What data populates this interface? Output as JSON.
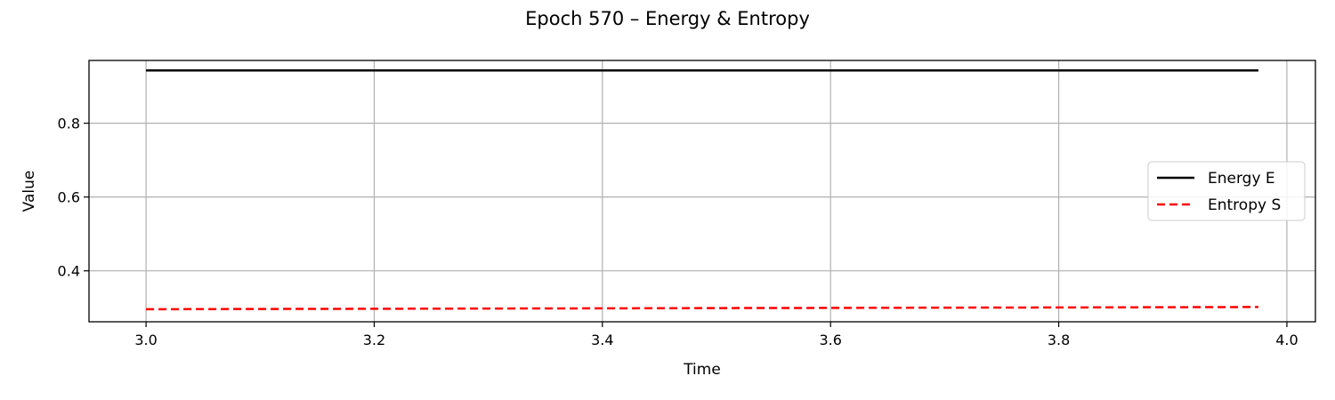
{
  "chart_data": {
    "type": "line",
    "title": "Epoch 570 – Energy & Entropy",
    "xlabel": "Time",
    "ylabel": "Value",
    "xlim": [
      2.95,
      4.025
    ],
    "ylim": [
      0.262,
      0.97
    ],
    "xticks": [
      3.0,
      3.2,
      3.4,
      3.6,
      3.8,
      4.0
    ],
    "xtick_labels": [
      "3.0",
      "3.2",
      "3.4",
      "3.6",
      "3.8",
      "4.0"
    ],
    "yticks": [
      0.4,
      0.6,
      0.8
    ],
    "ytick_labels": [
      "0.4",
      "0.6",
      "0.8"
    ],
    "grid": true,
    "legend_position": "center-right",
    "x": [
      3.0,
      3.1,
      3.2,
      3.3,
      3.4,
      3.5,
      3.6,
      3.7,
      3.8,
      3.9,
      3.975
    ],
    "series": [
      {
        "name": "Energy E",
        "color": "#000000",
        "style": "solid",
        "values": [
          0.943,
          0.943,
          0.943,
          0.943,
          0.943,
          0.943,
          0.943,
          0.943,
          0.943,
          0.943,
          0.943
        ]
      },
      {
        "name": "Entropy S",
        "color": "#ff0000",
        "style": "dashed",
        "values": [
          0.296,
          0.2966,
          0.2972,
          0.2978,
          0.2984,
          0.299,
          0.2996,
          0.3002,
          0.3008,
          0.3014,
          0.302
        ]
      }
    ]
  }
}
